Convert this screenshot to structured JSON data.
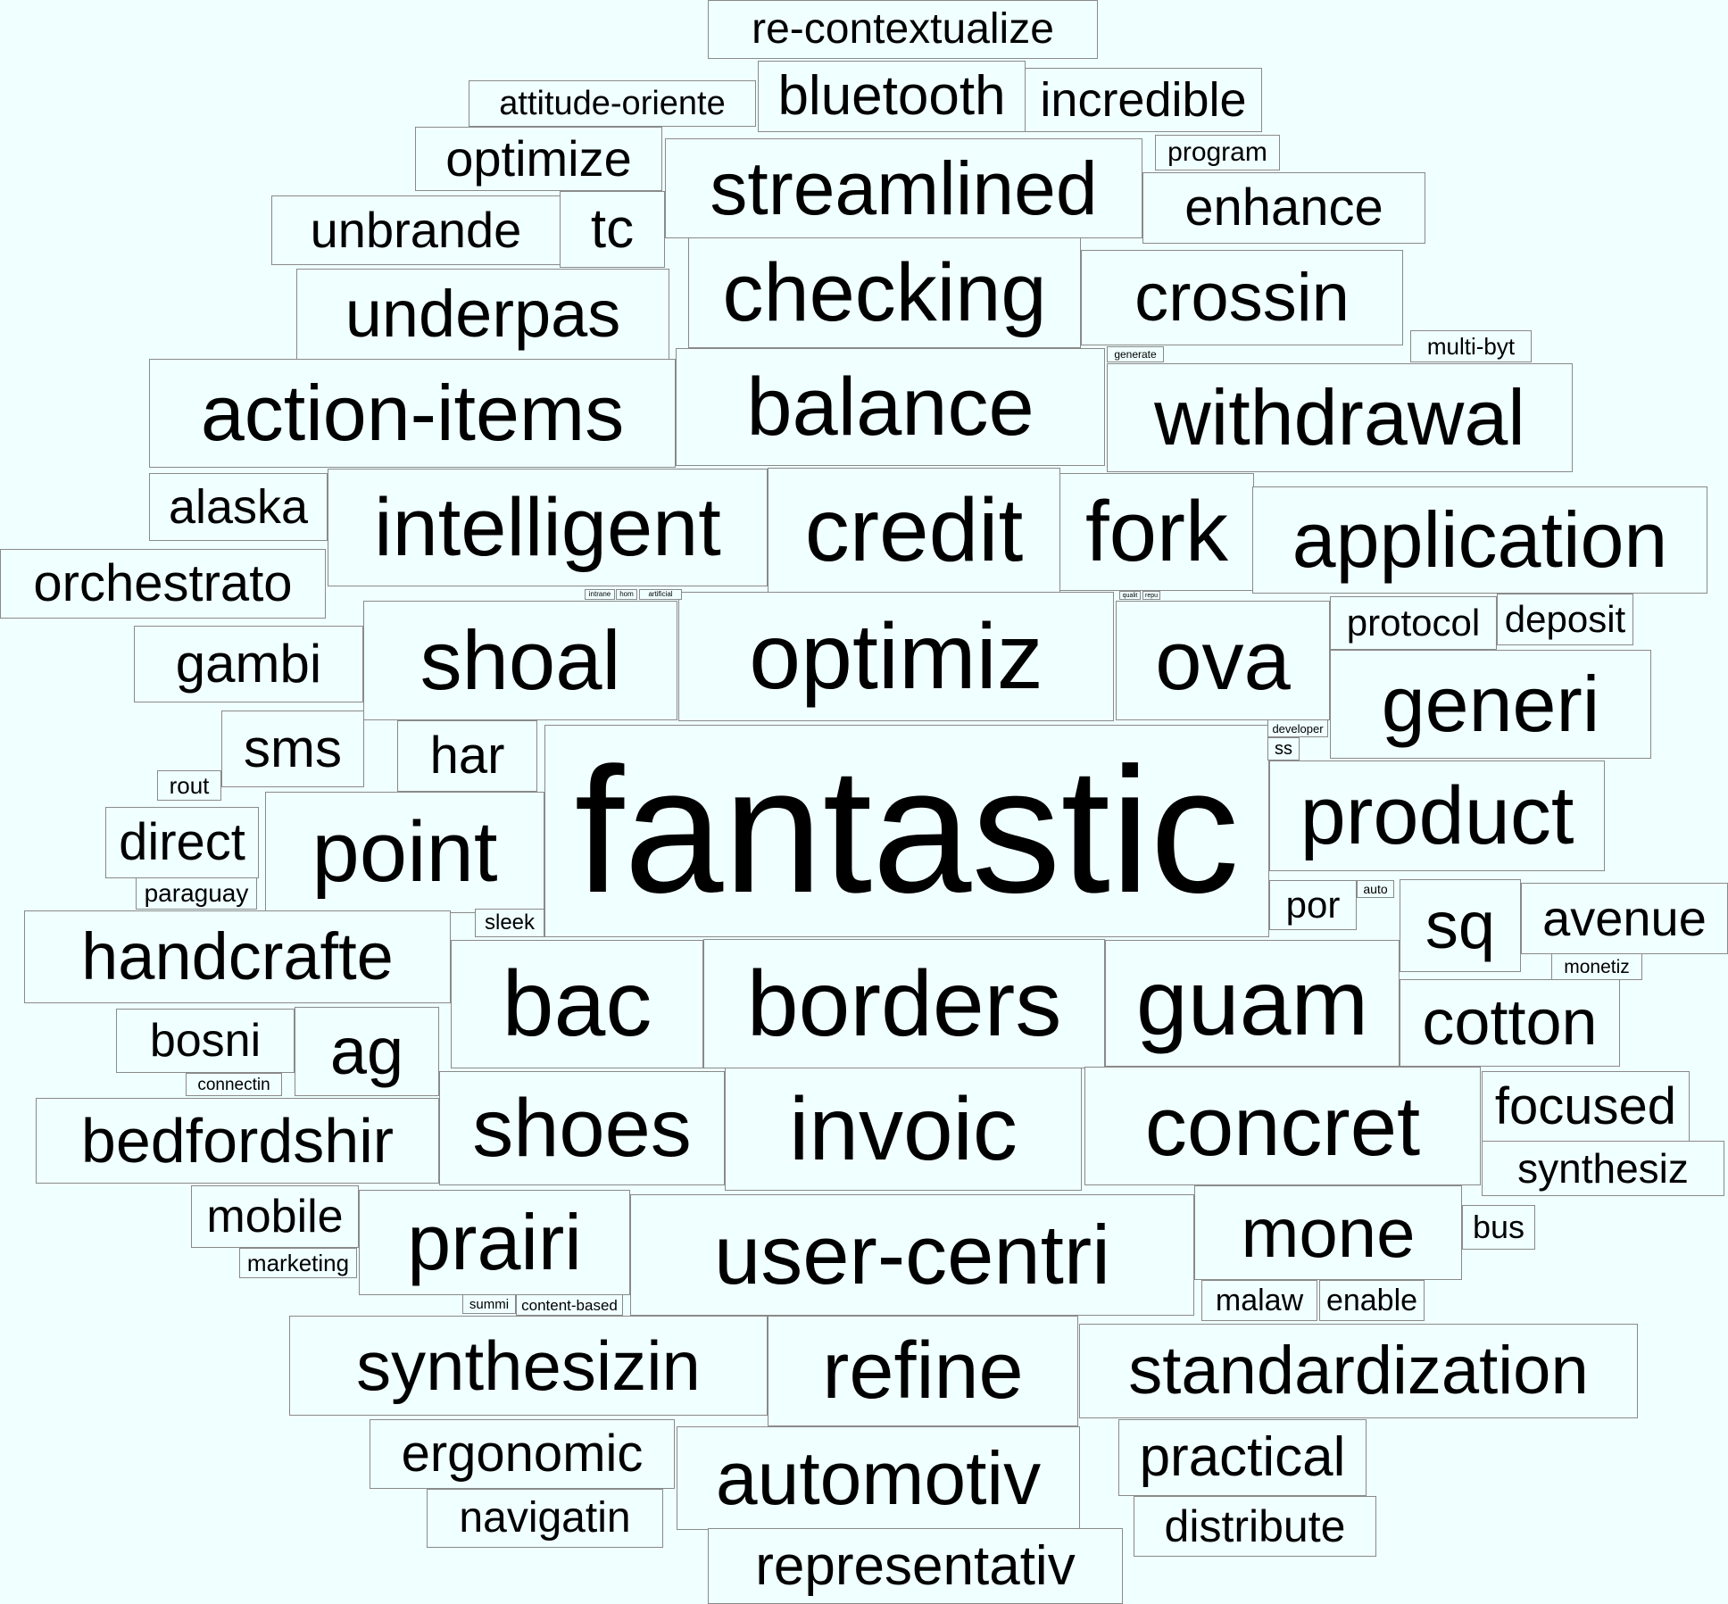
{
  "background_color": "#f0ffff",
  "text_color": "#000000",
  "border_color": "#8a8a8a",
  "words": [
    "fantastic",
    "action-items",
    "intelligent",
    "credit",
    "fork",
    "application",
    "withdrawal",
    "balance",
    "checking",
    "crossin",
    "streamlined",
    "enhance",
    "program",
    "multi-byt",
    "generate",
    "re-contextualize",
    "bluetooth",
    "incredible",
    "attitude-oriente",
    "optimize",
    "unbrande",
    "tc",
    "underpas",
    "alaska",
    "orchestrato",
    "gambi",
    "sms",
    "rout",
    "har",
    "shoal",
    "optimiz",
    "ova",
    "protocol",
    "deposit",
    "generi",
    "developer",
    "ss",
    "direct",
    "point",
    "paraguay",
    "sleek",
    "product",
    "por",
    "auto",
    "sq",
    "avenue",
    "monetiz",
    "handcrafte",
    "bac",
    "borders",
    "guam",
    "cotton",
    "bosni",
    "ag",
    "connectin",
    "bedfordshir",
    "shoes",
    "invoic",
    "concret",
    "focused",
    "synthesiz",
    "mobile",
    "marketing",
    "prairi",
    "user-centri",
    "mone",
    "bus",
    "malaw",
    "enable",
    "summi",
    "content-based",
    "synthesizin",
    "refine",
    "standardization",
    "ergonomic",
    "navigatin",
    "automotiv",
    "practical",
    "distribute",
    "representativ",
    "intrane",
    "hom",
    "artificial",
    "qualit",
    "repu"
  ]
}
